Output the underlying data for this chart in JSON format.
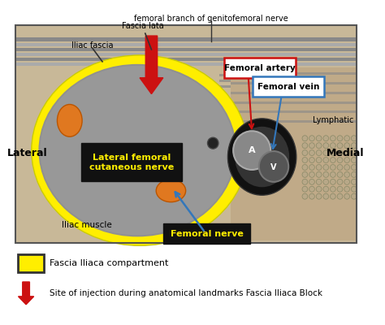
{
  "fig_width": 4.74,
  "fig_height": 4.0,
  "dpi": 100,
  "bg_color": "#ffffff",
  "legend1_text": "Fascia Iliaca compartment",
  "legend2_text": "Site of injection during anatomical landmarks Fascia Iliaca Block",
  "label_lateral": "Lateral",
  "label_medial": "Medial",
  "label_fascia_lata": "Fascia lata",
  "label_iliac_fascia": "Iliac fascia",
  "label_genitofemoral": "femoral branch of genitofemoral nerve",
  "label_femoral_artery": "Femoral artery",
  "label_femoral_vein": "Femoral vein",
  "label_lymphatic": "Lymphatic",
  "label_iliac_muscle": "Iliac muscle",
  "label_femoral_nerve": "Femoral nerve",
  "label_lfcn": "Lateral femoral\ncutaneous nerve",
  "color_yellow": "#ffee00",
  "color_orange": "#e07820",
  "color_red": "#cc1111",
  "color_blue": "#3377bb",
  "color_black": "#000000",
  "color_white": "#ffffff",
  "color_bg_tan": "#c8b898",
  "color_gray_muscle": "#909090",
  "color_gray_med": "#a8a8a8",
  "color_dark": "#1a1a1a",
  "color_stripe": "#787878"
}
